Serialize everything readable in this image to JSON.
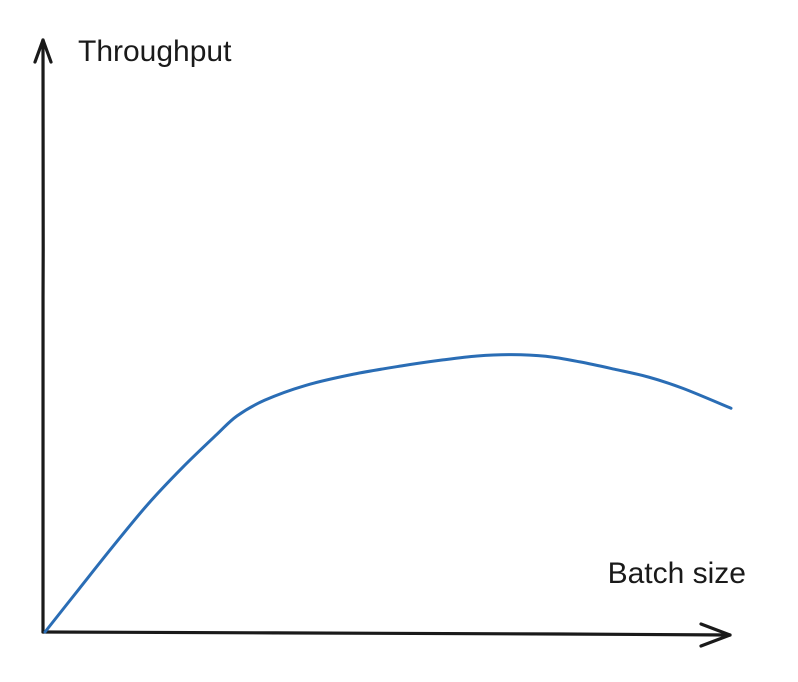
{
  "chart_data": {
    "type": "line",
    "title": "",
    "xlabel": "Batch size",
    "ylabel": "Throughput",
    "xlim": [
      0,
      100
    ],
    "ylim": [
      0,
      100
    ],
    "grid": false,
    "legend": "none",
    "ticks": false,
    "series": [
      {
        "color": "#2a6db5",
        "x": [
          0,
          5,
          10,
          15,
          20,
          25,
          28,
          32,
          38,
          45,
          52,
          58,
          63,
          68,
          73,
          78,
          83,
          88,
          93,
          100
        ],
        "y": [
          0,
          13.1,
          26.1,
          38.6,
          49.6,
          59.6,
          65.3,
          70.0,
          74.5,
          77.9,
          80.4,
          82.2,
          83.4,
          83.8,
          83.3,
          81.6,
          79.4,
          77.0,
          73.6,
          67.6
        ]
      }
    ]
  },
  "colors": {
    "axis": "#1a1a1a",
    "series": "#2a6db5",
    "background": "#ffffff"
  }
}
